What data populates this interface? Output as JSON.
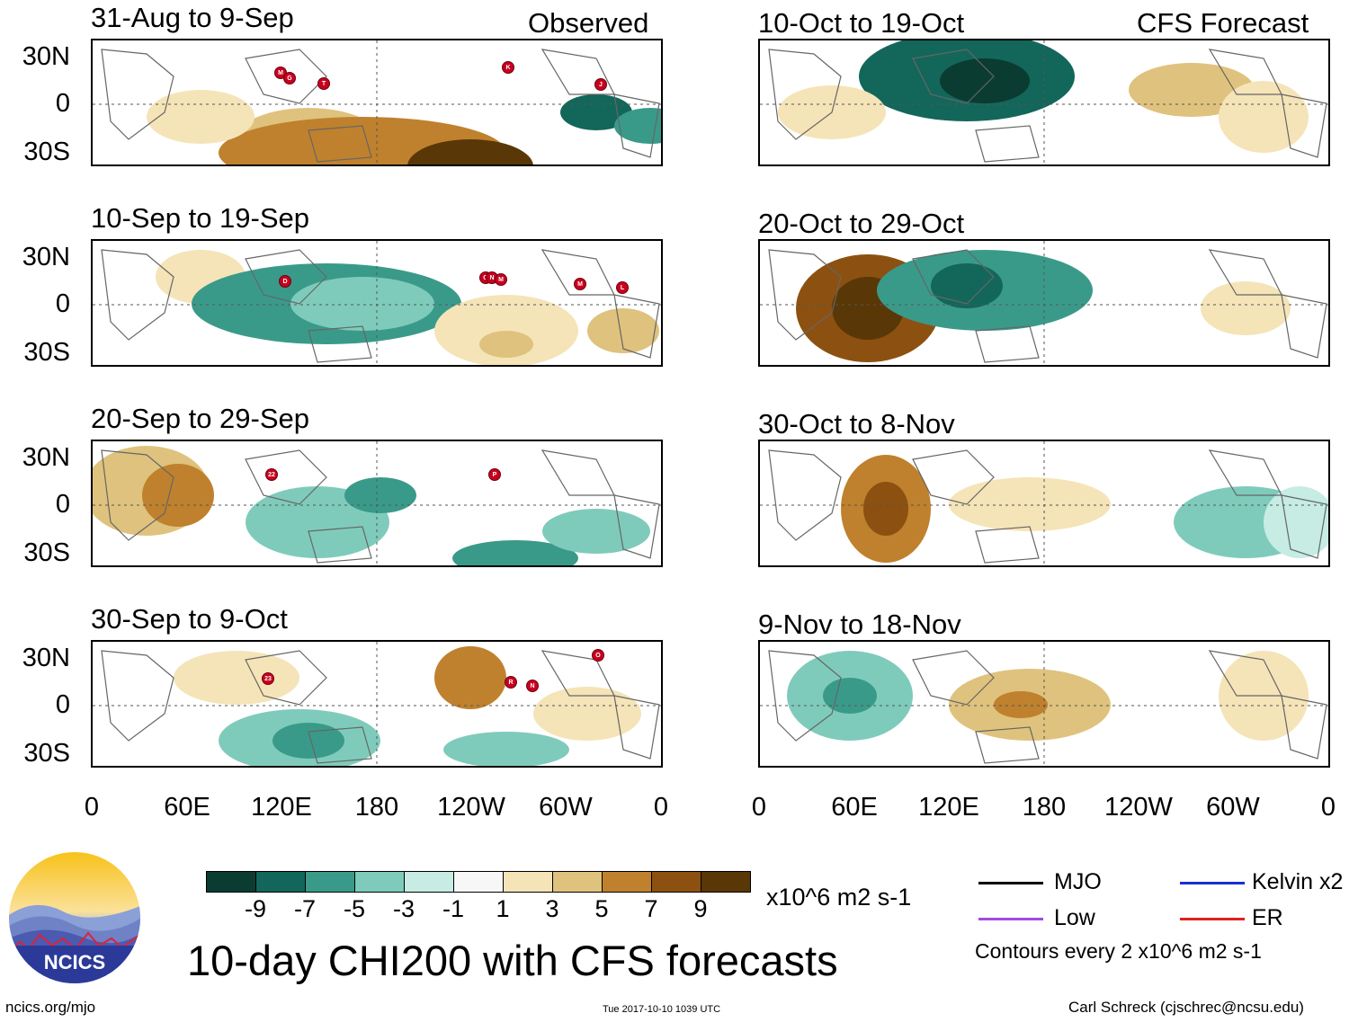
{
  "header": {
    "observed_label": "Observed",
    "forecast_label": "CFS Forecast"
  },
  "panels": [
    {
      "title": "31-Aug to 9-Sep",
      "storms": [
        "M",
        "G",
        "T",
        "K",
        "J"
      ]
    },
    {
      "title": "10-Sep to 19-Sep",
      "storms": [
        "D",
        "O",
        "N",
        "M",
        "M",
        "L"
      ]
    },
    {
      "title": "20-Sep to 29-Sep",
      "storms": [
        "22",
        "P"
      ]
    },
    {
      "title": "30-Sep to 9-Oct",
      "storms": [
        "23",
        "R",
        "N",
        "O"
      ]
    },
    {
      "title": "10-Oct to 19-Oct",
      "storms": []
    },
    {
      "title": "20-Oct to 29-Oct",
      "storms": []
    },
    {
      "title": "30-Oct to 8-Nov",
      "storms": []
    },
    {
      "title": "9-Nov to 18-Nov",
      "storms": []
    }
  ],
  "axes": {
    "y_labels": [
      "30N",
      "0",
      "30S"
    ],
    "x_labels": [
      "0",
      "60E",
      "120E",
      "180",
      "120W",
      "60W",
      "0"
    ]
  },
  "colorbar": {
    "labels": [
      "-9",
      "-7",
      "-5",
      "-3",
      "-1",
      "1",
      "3",
      "5",
      "7",
      "9"
    ],
    "colors": [
      "#0a3c32",
      "#13665a",
      "#3a9a8a",
      "#7fcbbb",
      "#c6ece4",
      "#f7f7f7",
      "#f5e4b8",
      "#dfc27d",
      "#bf812d",
      "#8c5110",
      "#5a3707"
    ],
    "units": "x10^6 m2 s-1"
  },
  "legend": {
    "items": [
      {
        "label": "MJO",
        "color": "#000000"
      },
      {
        "label": "Kelvin x2",
        "color": "#1a2fd0"
      },
      {
        "label": "Low",
        "color": "#a24ae0"
      },
      {
        "label": "ER",
        "color": "#e02020"
      }
    ],
    "contour_note": "Contours every 2 x10^6 m2 s-1"
  },
  "footer": {
    "title": "10-day CHI200 with CFS forecasts",
    "logo_text": "NCICS",
    "url": "ncics.org/mjo",
    "timestamp": "Tue 2017-10-10 1039 UTC",
    "author": "Carl Schreck (cjschrec@ncsu.edu)"
  }
}
